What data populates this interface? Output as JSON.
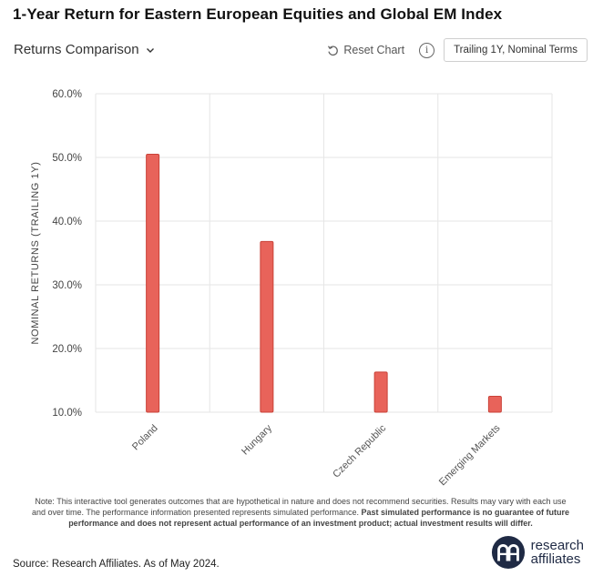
{
  "header": {
    "title": "1-Year Return for Eastern European Equities and Global EM Index",
    "comparison_label": "Returns Comparison",
    "reset_label": "Reset Chart",
    "info_glyph": "i",
    "mode_label": "Trailing 1Y, Nominal Terms"
  },
  "chart_data": {
    "type": "bar",
    "title": "1-Year Return for Eastern European Equities and Global EM Index",
    "ylabel": "NOMINAL RETURNS (TRAILING 1Y)",
    "xlabel": "",
    "categories": [
      "Poland",
      "Hungary",
      "Czech Republic",
      "Emerging Markets"
    ],
    "values": [
      50.5,
      36.8,
      16.3,
      12.5
    ],
    "ylim": [
      10,
      60
    ],
    "yticks": [
      60,
      50,
      40,
      30,
      20,
      10
    ],
    "ytick_labels": [
      "60.0%",
      "50.0%",
      "40.0%",
      "30.0%",
      "20.0%",
      "10.0%"
    ],
    "grid": true,
    "bar_color": "#e8635a",
    "bar_edge_color": "#c94238"
  },
  "footer": {
    "note_plain": "Note: This interactive tool generates outcomes that are hypothetical in nature and does not recommend securities. Results may vary with each use and over time. The performance information presented represents simulated performance.",
    "note_bold": "Past simulated performance is no guarantee of future performance and does not represent actual performance of an investment product; actual investment results will differ.",
    "source": "Source: Research Affiliates. As of May 2024.",
    "logo_line1": "research",
    "logo_line2": "affiliates"
  }
}
